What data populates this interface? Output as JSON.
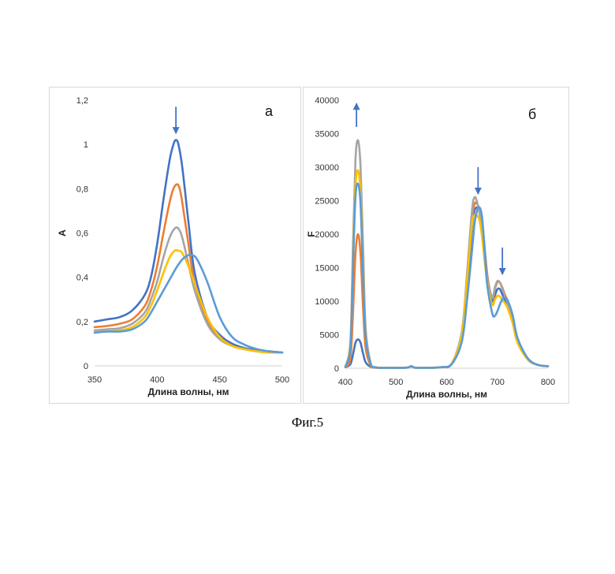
{
  "caption": "Фиг.5",
  "chart_data": [
    {
      "type": "line",
      "panel_label": "а",
      "xlabel": "Длина волны, нм",
      "ylabel": "A",
      "xlim": [
        350,
        500
      ],
      "ylim": [
        0,
        1.2
      ],
      "xticks": [
        "350",
        "400",
        "450",
        "500"
      ],
      "yticks": [
        "0",
        "0,2",
        "0,4",
        "0,6",
        "0,8",
        "1",
        "1,2"
      ],
      "grid": false,
      "arrows": [
        {
          "x": 415,
          "y_from": 1.17,
          "y_to": 1.05,
          "direction": "down"
        }
      ],
      "series": [
        {
          "color": "#4472c4",
          "x": [
            350,
            360,
            370,
            380,
            390,
            395,
            400,
            405,
            410,
            413,
            415,
            417,
            420,
            425,
            430,
            440,
            450,
            460,
            470,
            480,
            490,
            500
          ],
          "values": [
            0.2,
            0.21,
            0.22,
            0.25,
            0.32,
            0.4,
            0.55,
            0.75,
            0.93,
            1.0,
            1.02,
            1.0,
            0.9,
            0.65,
            0.42,
            0.22,
            0.14,
            0.1,
            0.08,
            0.07,
            0.065,
            0.06
          ]
        },
        {
          "color": "#ed7d31",
          "x": [
            350,
            360,
            370,
            380,
            390,
            395,
            400,
            405,
            410,
            413,
            416,
            418,
            420,
            425,
            430,
            440,
            450,
            460,
            470,
            480,
            490,
            500
          ],
          "values": [
            0.175,
            0.18,
            0.19,
            0.21,
            0.27,
            0.34,
            0.45,
            0.6,
            0.74,
            0.8,
            0.82,
            0.8,
            0.74,
            0.55,
            0.37,
            0.2,
            0.13,
            0.09,
            0.075,
            0.065,
            0.06,
            0.06
          ]
        },
        {
          "color": "#a5a5a5",
          "x": [
            350,
            360,
            370,
            380,
            390,
            395,
            400,
            405,
            410,
            414,
            417,
            420,
            425,
            430,
            440,
            450,
            460,
            470,
            480,
            490,
            500
          ],
          "values": [
            0.16,
            0.165,
            0.17,
            0.19,
            0.24,
            0.3,
            0.38,
            0.49,
            0.58,
            0.62,
            0.62,
            0.58,
            0.46,
            0.34,
            0.19,
            0.12,
            0.09,
            0.075,
            0.065,
            0.06,
            0.06
          ]
        },
        {
          "color": "#ffc000",
          "x": [
            350,
            360,
            370,
            380,
            390,
            395,
            400,
            405,
            410,
            414,
            417,
            420,
            425,
            430,
            440,
            450,
            460,
            470,
            480,
            490,
            500
          ],
          "values": [
            0.15,
            0.155,
            0.16,
            0.175,
            0.22,
            0.27,
            0.34,
            0.42,
            0.49,
            0.52,
            0.52,
            0.51,
            0.45,
            0.37,
            0.22,
            0.13,
            0.09,
            0.075,
            0.065,
            0.06,
            0.06
          ]
        },
        {
          "color": "#5b9bd5",
          "x": [
            350,
            360,
            370,
            380,
            390,
            395,
            400,
            405,
            410,
            415,
            420,
            425,
            428,
            432,
            440,
            450,
            460,
            470,
            480,
            490,
            500
          ],
          "values": [
            0.15,
            0.155,
            0.155,
            0.165,
            0.2,
            0.24,
            0.29,
            0.34,
            0.39,
            0.44,
            0.48,
            0.5,
            0.5,
            0.48,
            0.38,
            0.22,
            0.13,
            0.095,
            0.075,
            0.065,
            0.06
          ]
        }
      ]
    },
    {
      "type": "line",
      "panel_label": "б",
      "xlabel": "Длина волны, нм",
      "ylabel": "F",
      "xlim": [
        400,
        800
      ],
      "ylim": [
        0,
        40000
      ],
      "xticks": [
        "400",
        "500",
        "600",
        "700",
        "800"
      ],
      "yticks": [
        "0",
        "5000",
        "10000",
        "15000",
        "20000",
        "25000",
        "30000",
        "35000",
        "40000"
      ],
      "grid": false,
      "arrows": [
        {
          "x": 422,
          "y_from": 36000,
          "y_to": 39500,
          "direction": "up"
        },
        {
          "x": 662,
          "y_from": 30000,
          "y_to": 26000,
          "direction": "down"
        },
        {
          "x": 710,
          "y_from": 18000,
          "y_to": 14000,
          "direction": "down"
        }
      ],
      "series": [
        {
          "color": "#4472c4",
          "x": [
            400,
            410,
            415,
            420,
            425,
            430,
            435,
            440,
            450,
            460,
            480,
            520,
            530,
            535,
            540,
            560,
            590,
            610,
            630,
            640,
            650,
            655,
            660,
            665,
            670,
            680,
            690,
            695,
            700,
            705,
            710,
            715,
            720,
            730,
            740,
            760,
            780,
            800
          ],
          "values": [
            150,
            600,
            2000,
            3800,
            4300,
            3800,
            2200,
            900,
            200,
            80,
            50,
            80,
            300,
            120,
            60,
            60,
            150,
            700,
            4500,
            12000,
            21000,
            23500,
            24000,
            23800,
            22000,
            14000,
            10000,
            10800,
            11800,
            11800,
            11000,
            10200,
            9500,
            7000,
            4000,
            1300,
            500,
            300
          ]
        },
        {
          "color": "#ed7d31",
          "x": [
            400,
            410,
            415,
            420,
            425,
            430,
            435,
            440,
            450,
            460,
            480,
            520,
            530,
            535,
            540,
            560,
            590,
            610,
            630,
            640,
            650,
            655,
            660,
            665,
            670,
            680,
            690,
            695,
            700,
            705,
            710,
            715,
            720,
            730,
            740,
            760,
            780,
            800
          ],
          "values": [
            150,
            1500,
            8000,
            17000,
            20000,
            17000,
            9000,
            3000,
            400,
            100,
            50,
            80,
            300,
            120,
            60,
            60,
            150,
            700,
            5000,
            13000,
            22000,
            24500,
            24500,
            23500,
            21000,
            14000,
            10500,
            11800,
            12800,
            12800,
            12000,
            11000,
            10000,
            7500,
            4200,
            1400,
            500,
            300
          ]
        },
        {
          "color": "#a5a5a5",
          "x": [
            400,
            410,
            415,
            420,
            425,
            430,
            435,
            440,
            450,
            460,
            480,
            520,
            530,
            535,
            540,
            560,
            590,
            610,
            630,
            640,
            650,
            655,
            660,
            665,
            670,
            680,
            690,
            695,
            700,
            705,
            710,
            715,
            720,
            730,
            740,
            760,
            780,
            800
          ],
          "values": [
            200,
            4000,
            18000,
            31000,
            34000,
            30000,
            18000,
            6000,
            800,
            150,
            60,
            80,
            300,
            120,
            60,
            60,
            150,
            700,
            5500,
            14000,
            23500,
            25500,
            24800,
            23000,
            20000,
            13500,
            10500,
            12000,
            13000,
            12800,
            11800,
            10800,
            9800,
            7200,
            4000,
            1300,
            500,
            300
          ]
        },
        {
          "color": "#ffc000",
          "x": [
            400,
            410,
            415,
            420,
            425,
            430,
            435,
            440,
            450,
            460,
            480,
            520,
            530,
            535,
            540,
            560,
            590,
            610,
            630,
            640,
            650,
            655,
            660,
            665,
            670,
            680,
            690,
            695,
            700,
            705,
            710,
            715,
            720,
            730,
            740,
            760,
            780,
            800
          ],
          "values": [
            200,
            3500,
            16000,
            27000,
            29500,
            26000,
            15000,
            5000,
            700,
            130,
            55,
            80,
            300,
            120,
            60,
            60,
            150,
            700,
            5000,
            13000,
            21500,
            22800,
            22800,
            22000,
            19500,
            12800,
            9500,
            10200,
            10800,
            10700,
            10200,
            9700,
            9000,
            6800,
            3800,
            1300,
            500,
            300
          ]
        },
        {
          "color": "#5b9bd5",
          "x": [
            400,
            410,
            415,
            420,
            425,
            430,
            435,
            440,
            450,
            460,
            480,
            520,
            530,
            535,
            540,
            560,
            590,
            610,
            630,
            640,
            650,
            655,
            660,
            665,
            670,
            675,
            680,
            690,
            695,
            700,
            705,
            710,
            715,
            720,
            730,
            740,
            760,
            780,
            800
          ],
          "values": [
            200,
            3200,
            15000,
            25500,
            27500,
            24500,
            14000,
            4800,
            700,
            130,
            55,
            80,
            300,
            120,
            60,
            60,
            150,
            600,
            4000,
            10000,
            17500,
            21500,
            23500,
            24000,
            22500,
            17500,
            12500,
            8200,
            7800,
            8500,
            9500,
            10300,
            10500,
            10200,
            8000,
            4500,
            1500,
            500,
            300
          ]
        }
      ]
    }
  ]
}
